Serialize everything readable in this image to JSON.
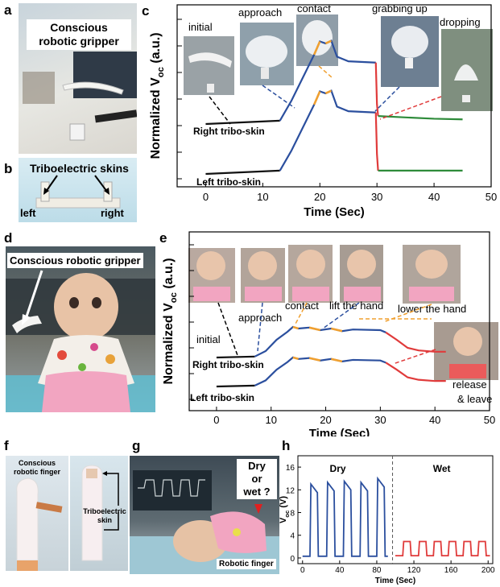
{
  "panels": {
    "a": {
      "letter": "a",
      "title_line1": "Conscious",
      "title_line2": "robotic gripper"
    },
    "b": {
      "letter": "b",
      "title": "Triboelectric skins",
      "left": "left",
      "right": "right"
    },
    "c": {
      "letter": "c"
    },
    "d": {
      "letter": "d",
      "title": "Conscious robotic gripper"
    },
    "e": {
      "letter": "e"
    },
    "f": {
      "letter": "f",
      "label_top_line1": "Conscious",
      "label_top_line2": "robotic finger",
      "label_bottom_line1": "Triboelectric",
      "label_bottom_line2": "skin"
    },
    "g": {
      "letter": "g",
      "question_line1": "Dry",
      "question_line2": "or",
      "question_line3": "wet ?",
      "finger_label": "Robotic finger"
    },
    "h": {
      "letter": "h"
    }
  },
  "chart_data": [
    {
      "id": "c",
      "type": "line",
      "xlabel": "Time (Sec)",
      "ylabel": "Normalized V",
      "ylabel_sub": "oc",
      "ylabel_unit": " (a.u.)",
      "xlim": [
        -5,
        50
      ],
      "xticks": [
        0,
        10,
        20,
        30,
        40,
        50
      ],
      "stages": [
        "initial",
        "approach",
        "contact",
        "grabbing up",
        "dropping"
      ],
      "series": [
        {
          "name": "Right tribo-skin",
          "x": [
            0,
            13,
            15,
            17,
            19,
            20,
            21,
            22,
            23,
            25,
            29.8,
            30,
            30.2,
            35,
            40,
            45
          ],
          "y": [
            0,
            0.05,
            0.35,
            0.7,
            1.05,
            1.25,
            1.22,
            1.26,
            1.02,
            0.95,
            0.93,
            0.3,
            0.12,
            0.1,
            0.08,
            0.07
          ]
        },
        {
          "name": "Left tribo-skin",
          "x": [
            0,
            13,
            15,
            17,
            19,
            20,
            21,
            22,
            23,
            25,
            29.8,
            30,
            30.2,
            35,
            40,
            45
          ],
          "y": [
            0,
            0.05,
            0.35,
            0.7,
            1.05,
            1.25,
            1.22,
            1.26,
            1.02,
            0.95,
            0.93,
            0.3,
            0.05,
            0.05,
            0.05,
            0.05
          ]
        }
      ]
    },
    {
      "id": "e",
      "type": "line",
      "xlabel": "Time (Sec)",
      "ylabel": "Normalized V",
      "ylabel_sub": "oc",
      "ylabel_unit": " (a.u.)",
      "xlim": [
        -5,
        50
      ],
      "xticks": [
        0,
        10,
        20,
        30,
        40,
        50
      ],
      "stages": [
        "initial",
        "approach",
        "contact",
        "lift the hand",
        "lower the hand",
        "release",
        "& leave"
      ],
      "series": [
        {
          "name": "Right tribo-skin",
          "x": [
            0,
            7,
            9,
            11,
            13,
            14,
            15,
            17,
            19,
            21,
            23,
            25,
            30,
            31,
            33,
            35,
            37,
            40,
            42
          ],
          "y": [
            0,
            0.03,
            0.2,
            0.55,
            0.8,
            0.95,
            0.9,
            0.93,
            0.85,
            0.9,
            0.82,
            0.87,
            0.85,
            0.78,
            0.55,
            0.3,
            0.22,
            0.18,
            0.18
          ]
        },
        {
          "name": "Left tribo-skin",
          "x": [
            0,
            7,
            9,
            11,
            13,
            14,
            15,
            17,
            19,
            21,
            23,
            25,
            30,
            31,
            33,
            35,
            37,
            40,
            42
          ],
          "y": [
            0,
            0.03,
            0.2,
            0.55,
            0.8,
            0.95,
            0.9,
            0.93,
            0.85,
            0.9,
            0.82,
            0.87,
            0.85,
            0.78,
            0.55,
            0.3,
            0.22,
            0.18,
            0.18
          ]
        }
      ]
    },
    {
      "id": "h",
      "type": "line",
      "xlabel": "Time (Sec)",
      "ylabel": "V",
      "ylabel_sub": "oc",
      "ylabel_unit": " (V)",
      "xlim": [
        -5,
        205
      ],
      "ylim": [
        -1,
        18
      ],
      "xticks": [
        0,
        40,
        80,
        120,
        160,
        200
      ],
      "yticks": [
        0,
        4,
        8,
        12,
        16
      ],
      "regions": [
        "Dry",
        "Wet"
      ],
      "divider_x": 97,
      "dry_pulses": {
        "starts": [
          8,
          26,
          44,
          62,
          80
        ],
        "width": 9,
        "peaks": [
          13,
          13.3,
          13.5,
          13.3,
          14
        ]
      },
      "wet_pulses": {
        "starts": [
          108,
          125,
          141,
          157,
          173,
          189
        ],
        "width": 9,
        "level": 2.9
      }
    }
  ]
}
